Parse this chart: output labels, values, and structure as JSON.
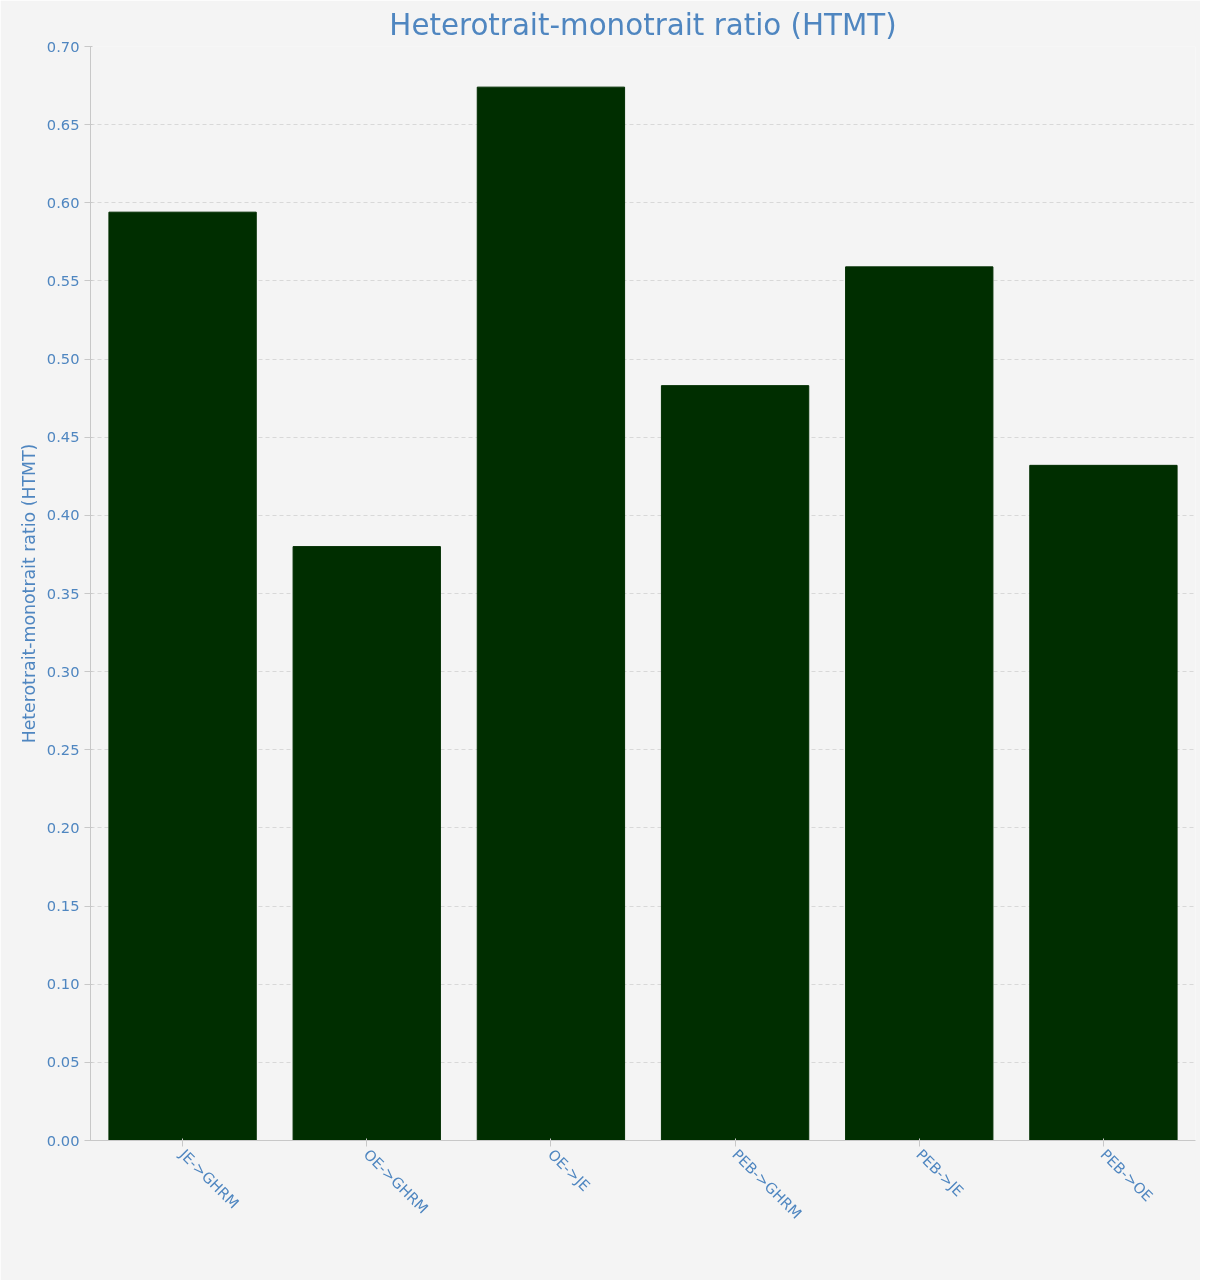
{
  "chart_data": {
    "type": "bar",
    "title": "Heterotrait-monotrait ratio (HTMT)",
    "ylabel": "Heterotrait-monotrait ratio (HTMT)",
    "categories": [
      "JE->GHRM",
      "OE->GHRM",
      "OE->JE",
      "PEB->GHRM",
      "PEB->JE",
      "PEB->OE"
    ],
    "values": [
      0.594,
      0.38,
      0.674,
      0.483,
      0.559,
      0.432
    ],
    "color": "#002e00",
    "ylim": [
      0,
      0.7
    ],
    "yticks": [
      {
        "value": 0,
        "label": "0.00"
      },
      {
        "value": 0.05,
        "label": "0.05"
      },
      {
        "value": 0.1,
        "label": "0.10"
      },
      {
        "value": 0.15,
        "label": "0.15"
      },
      {
        "value": 0.2,
        "label": "0.20"
      },
      {
        "value": 0.25,
        "label": "0.25"
      },
      {
        "value": 0.3,
        "label": "0.30"
      },
      {
        "value": 0.35,
        "label": "0.35"
      },
      {
        "value": 0.4,
        "label": "0.40"
      },
      {
        "value": 0.45,
        "label": "0.45"
      },
      {
        "value": 0.5,
        "label": "0.50"
      },
      {
        "value": 0.55,
        "label": "0.55"
      },
      {
        "value": 0.6,
        "label": "0.60"
      },
      {
        "value": 0.65,
        "label": "0.65"
      },
      {
        "value": 0.7,
        "label": "0.70"
      }
    ],
    "grid": "y"
  }
}
